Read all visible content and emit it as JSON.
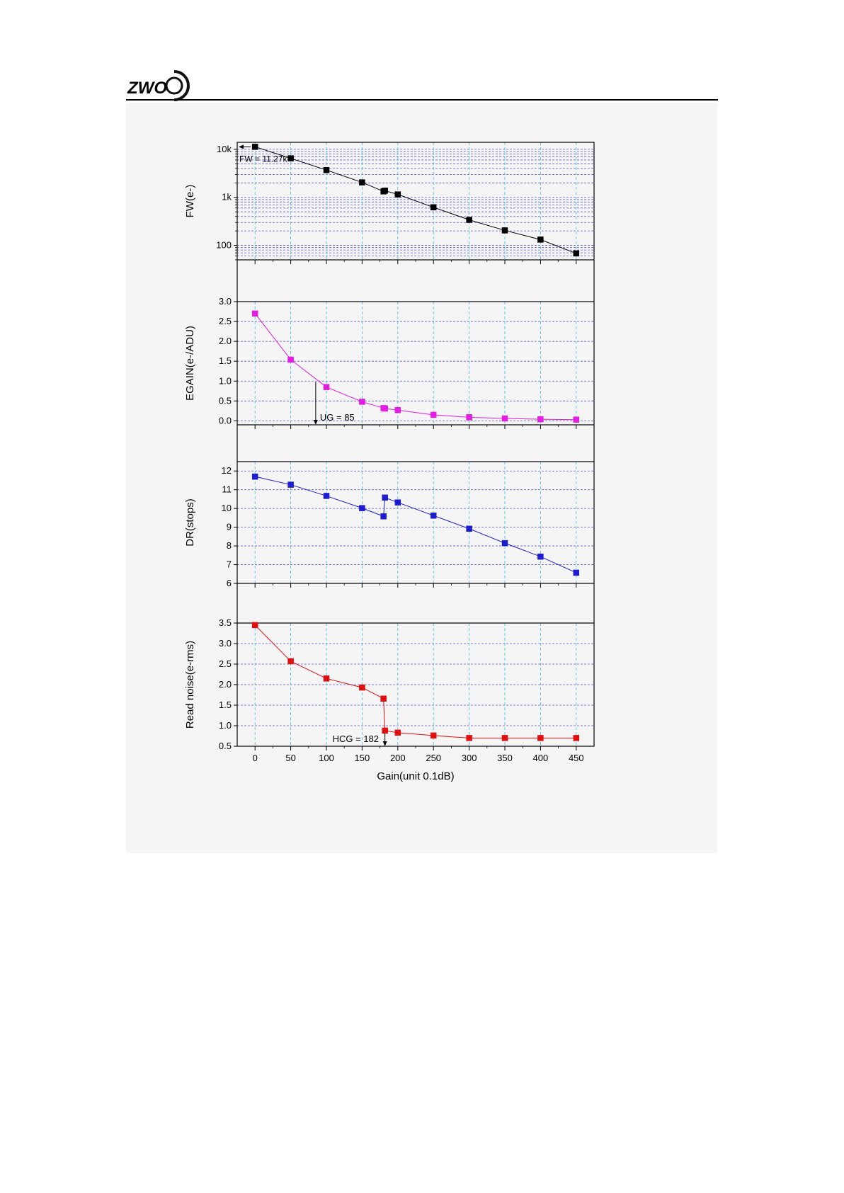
{
  "header": {
    "logo_text": "ZWO"
  },
  "chart_data": [
    {
      "type": "line",
      "ylabel": "FW(e-)",
      "yscale": "log",
      "ylim": [
        50,
        14000
      ],
      "yticks": [
        {
          "value": 100,
          "label": "100"
        },
        {
          "value": 1000,
          "label": "1k"
        },
        {
          "value": 10000,
          "label": "10k"
        }
      ],
      "color": "#000000",
      "x": [
        0,
        50,
        100,
        150,
        180,
        182,
        200,
        250,
        300,
        350,
        400,
        450
      ],
      "y": [
        11270,
        6500,
        3700,
        2050,
        1330,
        1380,
        1150,
        620,
        340,
        205,
        132,
        68
      ],
      "annotation": {
        "text": "FW = 11.27k",
        "arrow_to": [
          0,
          11270
        ]
      }
    },
    {
      "type": "line",
      "ylabel": "EGAIN(e-/ADU)",
      "ylim": [
        -0.1,
        3.0
      ],
      "yticks": [
        {
          "value": 0.0,
          "label": "0.0"
        },
        {
          "value": 0.5,
          "label": "0.5"
        },
        {
          "value": 1.0,
          "label": "1.0"
        },
        {
          "value": 1.5,
          "label": "1.5"
        },
        {
          "value": 2.0,
          "label": "2.0"
        },
        {
          "value": 2.5,
          "label": "2.5"
        },
        {
          "value": 3.0,
          "label": "3.0"
        }
      ],
      "color": "#e21ee2",
      "x": [
        0,
        50,
        100,
        150,
        180,
        182,
        200,
        250,
        300,
        350,
        400,
        450
      ],
      "y": [
        2.7,
        1.54,
        0.85,
        0.48,
        0.32,
        0.31,
        0.27,
        0.15,
        0.09,
        0.06,
        0.04,
        0.03
      ],
      "annotation": {
        "text": "UG = 85",
        "arrow_x": 85,
        "arrow_from": 0.98,
        "arrow_to": -0.1
      }
    },
    {
      "type": "line",
      "ylabel": "DR(stops)",
      "ylim": [
        6,
        12.5
      ],
      "yticks": [
        {
          "value": 6,
          "label": "6"
        },
        {
          "value": 7,
          "label": "7"
        },
        {
          "value": 8,
          "label": "8"
        },
        {
          "value": 9,
          "label": "9"
        },
        {
          "value": 10,
          "label": "10"
        },
        {
          "value": 11,
          "label": "11"
        },
        {
          "value": 12,
          "label": "12"
        }
      ],
      "color": "#1c1cd0",
      "x": [
        0,
        50,
        100,
        150,
        180,
        182,
        200,
        250,
        300,
        350,
        400,
        450
      ],
      "y": [
        11.7,
        11.27,
        10.67,
        10.02,
        9.58,
        10.58,
        10.32,
        9.62,
        8.92,
        8.15,
        7.43,
        6.57
      ]
    },
    {
      "type": "line",
      "ylabel": "Read noise(e-rms)",
      "xlabel": "Gain(unit 0.1dB)",
      "ylim": [
        0.5,
        3.5
      ],
      "yticks": [
        {
          "value": 0.5,
          "label": "0.5"
        },
        {
          "value": 1.0,
          "label": "1.0"
        },
        {
          "value": 1.5,
          "label": "1.5"
        },
        {
          "value": 2.0,
          "label": "2.0"
        },
        {
          "value": 2.5,
          "label": "2.5"
        },
        {
          "value": 3.0,
          "label": "3.0"
        },
        {
          "value": 3.5,
          "label": "3.5"
        }
      ],
      "color": "#e01010",
      "x": [
        0,
        50,
        100,
        150,
        180,
        182,
        200,
        250,
        300,
        350,
        400,
        450
      ],
      "y": [
        3.45,
        2.57,
        2.15,
        1.93,
        1.66,
        0.88,
        0.83,
        0.76,
        0.7,
        0.7,
        0.7,
        0.7
      ],
      "annotation": {
        "text": "HCG = 182",
        "arrow_x": 182,
        "arrow_from": 0.82,
        "arrow_to": 0.5
      }
    }
  ],
  "x_axis": {
    "xlim": [
      -25,
      475
    ],
    "ticks": [
      0,
      50,
      100,
      150,
      200,
      250,
      300,
      350,
      400,
      450
    ],
    "minor_ticks": [
      25,
      75,
      125,
      175,
      225,
      275,
      325,
      375,
      425
    ],
    "grid": true
  },
  "colors": {
    "grid_vertical": "#40c0e0",
    "grid_horizontal": "#4040c0",
    "frame": "#000000",
    "background": "#f5f5f5"
  }
}
